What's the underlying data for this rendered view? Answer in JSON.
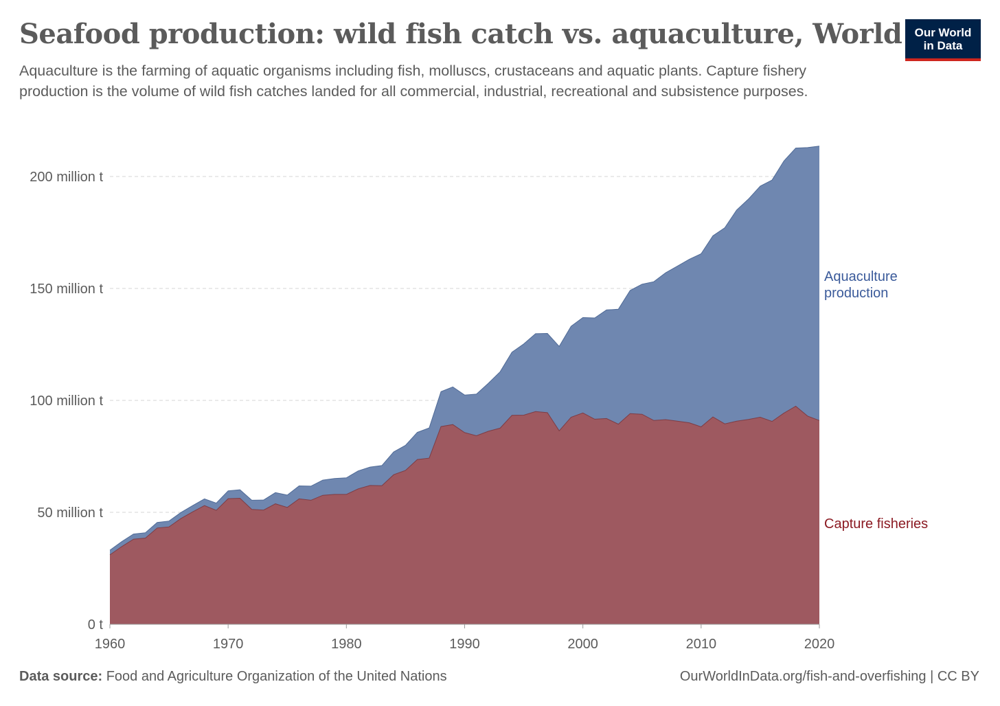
{
  "header": {
    "title": "Seafood production: wild fish catch vs. aquaculture, World",
    "subtitle": "Aquaculture is the farming of aquatic organisms including fish, molluscs, crustaceans and aquatic plants. Capture fishery production is the volume of wild fish catches landed for all commercial, industrial, recreational and subsistence purposes.",
    "logo_line1": "Our World",
    "logo_line2": "in Data"
  },
  "footer": {
    "source_label": "Data source:",
    "source_text": "Food and Agriculture Organization of the United Nations",
    "url_license": "OurWorldInData.org/fish-and-overfishing | CC BY"
  },
  "colors": {
    "aquaculture": "#6f87b0",
    "aquaculture_label": "#3a5a9a",
    "capture": "#9e5960",
    "capture_label": "#8b1a22",
    "logo_bg": "#002147",
    "logo_accent": "#ce261e"
  },
  "chart_data": {
    "type": "area",
    "stacked": true,
    "x": [
      1960,
      1961,
      1962,
      1963,
      1964,
      1965,
      1966,
      1967,
      1968,
      1969,
      1970,
      1971,
      1972,
      1973,
      1974,
      1975,
      1976,
      1977,
      1978,
      1979,
      1980,
      1981,
      1982,
      1983,
      1984,
      1985,
      1986,
      1987,
      1988,
      1989,
      1990,
      1991,
      1992,
      1993,
      1994,
      1995,
      1996,
      1997,
      1998,
      1999,
      2000,
      2001,
      2002,
      2003,
      2004,
      2005,
      2006,
      2007,
      2008,
      2009,
      2010,
      2011,
      2012,
      2013,
      2014,
      2015,
      2016,
      2017,
      2018,
      2019,
      2020
    ],
    "series": [
      {
        "name": "Capture fisheries",
        "values": [
          31.0,
          34.7,
          38.0,
          38.5,
          43.0,
          43.5,
          47.2,
          50.2,
          53.0,
          50.9,
          56.1,
          56.3,
          51.3,
          51.0,
          53.8,
          52.2,
          56.0,
          55.4,
          57.6,
          58.0,
          58.0,
          60.5,
          62.0,
          61.9,
          66.8,
          68.7,
          73.6,
          74.2,
          88.3,
          89.2,
          85.6,
          84.2,
          86.2,
          87.6,
          93.3,
          93.4,
          95.0,
          94.5,
          86.4,
          92.5,
          94.4,
          91.6,
          91.9,
          89.4,
          94.1,
          93.8,
          91.0,
          91.4,
          90.7,
          90.0,
          88.2,
          92.6,
          89.5,
          90.7,
          91.5,
          92.5,
          90.6,
          94.3,
          97.4,
          93.0,
          91.0
        ]
      },
      {
        "name": "Aquaculture production",
        "values": [
          2.1,
          2.2,
          2.3,
          2.4,
          2.5,
          2.6,
          2.7,
          2.8,
          3.0,
          3.2,
          3.5,
          3.8,
          4.1,
          4.5,
          5.0,
          5.5,
          5.8,
          6.3,
          6.8,
          7.1,
          7.4,
          8.0,
          8.2,
          9.0,
          10.2,
          11.2,
          12.1,
          13.5,
          15.6,
          16.8,
          16.8,
          18.6,
          21.4,
          25.2,
          28.2,
          31.8,
          34.8,
          35.4,
          37.7,
          40.6,
          42.6,
          45.2,
          48.5,
          51.3,
          55.0,
          58.1,
          62.0,
          65.6,
          69.3,
          73.0,
          77.3,
          80.9,
          87.6,
          94.3,
          98.4,
          103.2,
          107.8,
          112.6,
          115.3,
          119.9,
          122.6
        ]
      }
    ],
    "y_ticks": [
      0,
      50,
      100,
      150,
      200
    ],
    "y_tick_labels": [
      "0 t",
      "50 million t",
      "100 million t",
      "150 million t",
      "200 million t"
    ],
    "x_ticks": [
      1960,
      1970,
      1980,
      1990,
      2000,
      2010,
      2020
    ],
    "x_tick_labels": [
      "1960",
      "1970",
      "1980",
      "1990",
      "2000",
      "2010",
      "2020"
    ],
    "ylim": [
      0,
      215
    ],
    "xlim": [
      1960,
      2020
    ],
    "grid": "horizontal dashed",
    "legend": "inline labels at right end of each area",
    "line_labels": {
      "aquaculture": [
        "Aquaculture",
        "production"
      ],
      "capture": [
        "Capture fisheries"
      ]
    }
  }
}
